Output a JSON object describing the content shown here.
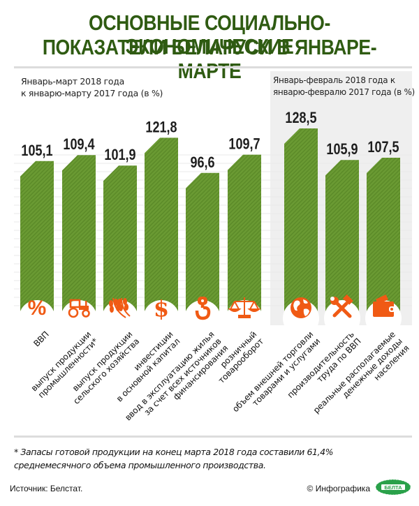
{
  "title": {
    "line1": "ОСНОВНЫЕ СОЦИАЛЬНО-ЭКОНОМИЧЕСКИЕ",
    "line2": "ПОКАЗАТЕЛИ БЕЛАРУСИ В ЯНВАРЕ-МАРТЕ"
  },
  "colors": {
    "title": "#2f5b12",
    "bar": "#6a9a33",
    "bar_stripe": "#5b8a28",
    "icon": "#f05a14",
    "panel": "#efefef"
  },
  "chart_data": {
    "type": "bar",
    "title": "Основные социально-экономические показатели Беларуси в январе-марте",
    "groups": [
      {
        "subtitle_line1": "Январь-март 2018 года",
        "subtitle_line2": "к январю-марту 2017 года (в %)",
        "bars": [
          {
            "value": 105.1,
            "value_label": "105,1",
            "icon": "percent-icon",
            "label_lines": [
              "ВВП"
            ]
          },
          {
            "value": 109.4,
            "value_label": "109,4",
            "icon": "tractor-icon",
            "label_lines": [
              "выпуск продукции",
              "промышленности*"
            ]
          },
          {
            "value": 101.9,
            "value_label": "101,9",
            "icon": "wheat-icon",
            "label_lines": [
              "выпуск продукции",
              "сельского хозяйства"
            ]
          },
          {
            "value": 121.8,
            "value_label": "121,8",
            "icon": "dollar-icon",
            "label_lines": [
              "инвестиции",
              "в основной капитал"
            ]
          },
          {
            "value": 96.6,
            "value_label": "96,6",
            "icon": "crane-hook-icon",
            "label_lines": [
              "ввод в эксплуатацию жилья",
              "за счет всех источников",
              "финансирования"
            ]
          },
          {
            "value": 109.7,
            "value_label": "109,7",
            "icon": "scales-icon",
            "label_lines": [
              "розничный",
              "товарооборот"
            ]
          }
        ]
      },
      {
        "subtitle_line1": "Январь-февраль 2018 года к",
        "subtitle_line2": "январю-февралю 2017 года (в %)",
        "bars": [
          {
            "value": 128.5,
            "value_label": "128,5",
            "icon": "globe-icon",
            "label_lines": [
              "объем внешней торговли",
              "товарами и услугами"
            ]
          },
          {
            "value": 105.9,
            "value_label": "105,9",
            "icon": "wrench-hammer-icon",
            "label_lines": [
              "производительность",
              "труда по ВВП"
            ]
          },
          {
            "value": 107.5,
            "value_label": "107,5",
            "icon": "wallet-icon",
            "label_lines": [
              "реальные располагаемые",
              "денежные доходы",
              "населения"
            ]
          }
        ]
      }
    ],
    "unit": "%"
  },
  "footnote": {
    "line1": "* Запасы готовой продукции на конец марта 2018 года составили 61,4%",
    "line2": "среднемесячного объема промышленного производства."
  },
  "source": "Источник: Белстат.",
  "credit": "© Инфографика",
  "logo_text": "БЕЛТА"
}
